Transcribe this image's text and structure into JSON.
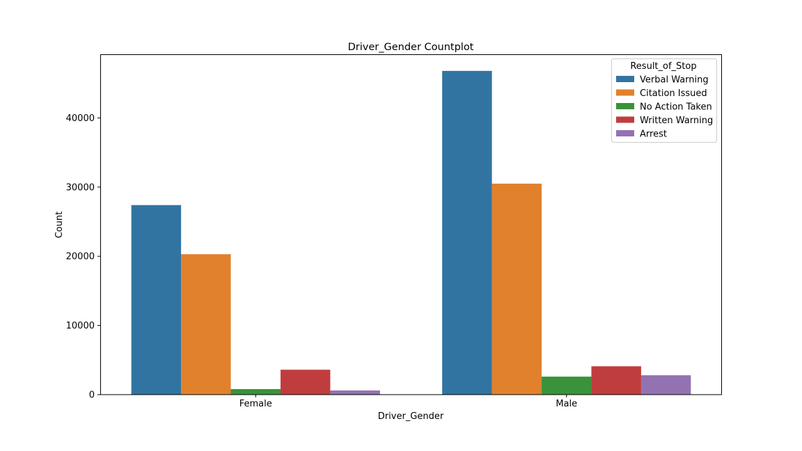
{
  "chart_data": {
    "type": "bar",
    "title": "Driver_Gender Countplot",
    "xlabel": "Driver_Gender",
    "ylabel": "Count",
    "categories": [
      "Female",
      "Male"
    ],
    "ylim": [
      0,
      49200
    ],
    "yticks": [
      0,
      10000,
      20000,
      30000,
      40000
    ],
    "ytick_labels": [
      "0",
      "10000",
      "20000",
      "30000",
      "40000"
    ],
    "grid": false,
    "legend": {
      "title": "Result_of_Stop",
      "placement": "top-right"
    },
    "series": [
      {
        "name": "Verbal Warning",
        "color": "#3274a1",
        "values": [
          27400,
          46800
        ]
      },
      {
        "name": "Citation Issued",
        "color": "#e1812c",
        "values": [
          20300,
          30500
        ]
      },
      {
        "name": "No Action Taken",
        "color": "#3a923a",
        "values": [
          800,
          2600
        ]
      },
      {
        "name": "Written Warning",
        "color": "#c03d3e",
        "values": [
          3600,
          4100
        ]
      },
      {
        "name": "Arrest",
        "color": "#9372b2",
        "values": [
          600,
          2800
        ]
      }
    ]
  }
}
